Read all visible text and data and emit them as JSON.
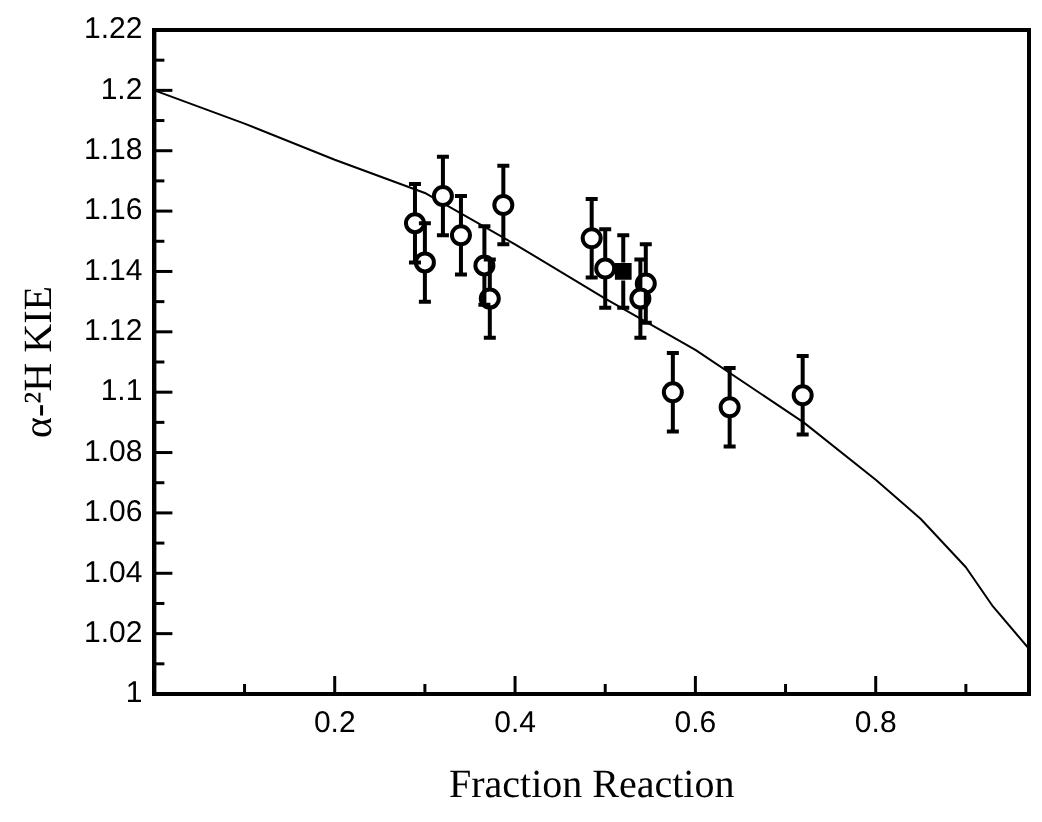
{
  "chart_data": {
    "type": "scatter",
    "xlabel": "Fraction Reaction",
    "ylabel": "α-²H KIE",
    "xlim": [
      0,
      0.97
    ],
    "xticks": [
      {
        "value": 0.1,
        "label": null
      },
      0.2,
      {
        "value": 0.3,
        "label": null
      },
      0.4,
      {
        "value": 0.5,
        "label": null
      },
      0.6,
      {
        "value": 0.7,
        "label": null
      },
      0.8,
      {
        "value": 0.9,
        "label": null
      }
    ],
    "ylim": [
      1,
      1.22
    ],
    "yticks": [
      1,
      {
        "value": 1.01,
        "label": null
      },
      1.02,
      {
        "value": 1.03,
        "label": null
      },
      1.04,
      {
        "value": 1.05,
        "label": null
      },
      1.06,
      {
        "value": 1.07,
        "label": null
      },
      1.08,
      {
        "value": 1.09,
        "label": null
      },
      1.1,
      {
        "value": 1.11,
        "label": null
      },
      1.12,
      {
        "value": 1.13,
        "label": null
      },
      1.14,
      {
        "value": 1.15,
        "label": null
      },
      1.16,
      {
        "value": 1.17,
        "label": null
      },
      1.18,
      {
        "value": 1.19,
        "label": null
      },
      1.2,
      {
        "value": 1.21,
        "label": null
      },
      1.22
    ],
    "grid": false,
    "legend": false,
    "series": [
      {
        "marker": "circle",
        "color": "#000000",
        "x": [
          0.289,
          0.3,
          0.32,
          0.34,
          0.366,
          0.372,
          0.387,
          0.485,
          0.5,
          0.545,
          0.539,
          0.575,
          0.638,
          0.719
        ],
        "values": [
          1.156,
          1.143,
          1.165,
          1.152,
          1.142,
          1.131,
          1.162,
          1.151,
          1.141,
          1.136,
          1.131,
          1.1,
          1.095,
          1.099
        ],
        "errors": [
          0.013,
          0.013,
          0.013,
          0.013,
          0.013,
          0.013,
          0.013,
          0.013,
          0.013,
          0.013,
          0.013,
          0.013,
          0.013,
          0.013
        ]
      },
      {
        "marker": "square",
        "color": "#000000",
        "x": [
          0.52
        ],
        "values": [
          1.14
        ],
        "errors": [
          0.012
        ]
      },
      {
        "type": "line",
        "marker": "none",
        "color": "#000000",
        "x": [
          0,
          0.1,
          0.2,
          0.3,
          0.4,
          0.5,
          0.6,
          0.72,
          0.8,
          0.85,
          0.9,
          0.93,
          0.97
        ],
        "values": [
          1.2,
          1.189,
          1.177,
          1.166,
          1.149,
          1.131,
          1.114,
          1.09,
          1.071,
          1.058,
          1.042,
          1.029,
          1.015
        ]
      }
    ]
  }
}
